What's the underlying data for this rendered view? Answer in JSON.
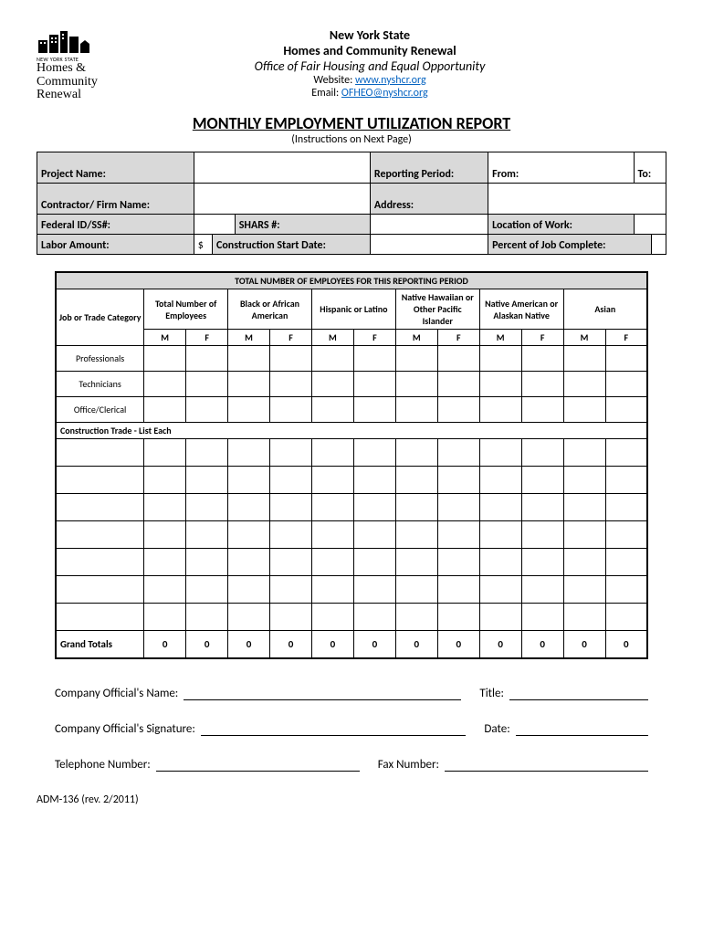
{
  "header": {
    "logo_small": "NEW YORK STATE",
    "logo_line1": "Homes &",
    "logo_line2": "Community",
    "logo_line3": "Renewal",
    "line1": "New York State",
    "line2": "Homes and Community Renewal",
    "line3": "Office of Fair Housing and Equal Opportunity",
    "website_label": "Website:  ",
    "website_url": "www.nyshcr.org",
    "email_label": "Email:  ",
    "email_addr": "OFHEO@nyshcr.org"
  },
  "title": "MONTHLY EMPLOYMENT UTILIZATION REPORT",
  "subtitle": "(Instructions on Next Page)",
  "info": {
    "project_name": "Project Name:",
    "reporting_period": "Reporting Period:",
    "from": "From:",
    "to": "To:",
    "contractor": "Contractor/ Firm Name:",
    "address": "Address:",
    "federal_id": "Federal ID/SS#:",
    "shars": "SHARS #:",
    "location": "Location of Work:",
    "labor_amount": "Labor Amount:",
    "dollar": "$",
    "construction_start": "Construction Start Date:",
    "percent_complete": "Percent of Job Complete:"
  },
  "emp": {
    "title": "TOTAL NUMBER OF EMPLOYEES FOR THIS REPORTING PERIOD",
    "category_header": "Job or Trade Category",
    "groups": [
      "Total Number of Employees",
      "Black or African American",
      "Hispanic or Latino",
      "Native Hawaiian or Other Pacific Islander",
      "Native American or Alaskan Native",
      "Asian"
    ],
    "m": "M",
    "f": "F",
    "rows": [
      "Professionals",
      "Technicians",
      "Office/Clerical"
    ],
    "section": "Construction Trade  -  List Each",
    "blank_rows": 7,
    "grand_totals": "Grand Totals",
    "totals": [
      0,
      0,
      0,
      0,
      0,
      0,
      0,
      0,
      0,
      0,
      0,
      0
    ]
  },
  "sig": {
    "name": "Company Official's Name:",
    "title": "Title:",
    "signature": "Company Official's Signature:",
    "date": "Date:",
    "phone": "Telephone Number:",
    "fax": "Fax Number:"
  },
  "footer": "ADM-136 (rev. 2/2011)",
  "colors": {
    "shade": "#d9d9d9",
    "link": "#0563c1"
  }
}
